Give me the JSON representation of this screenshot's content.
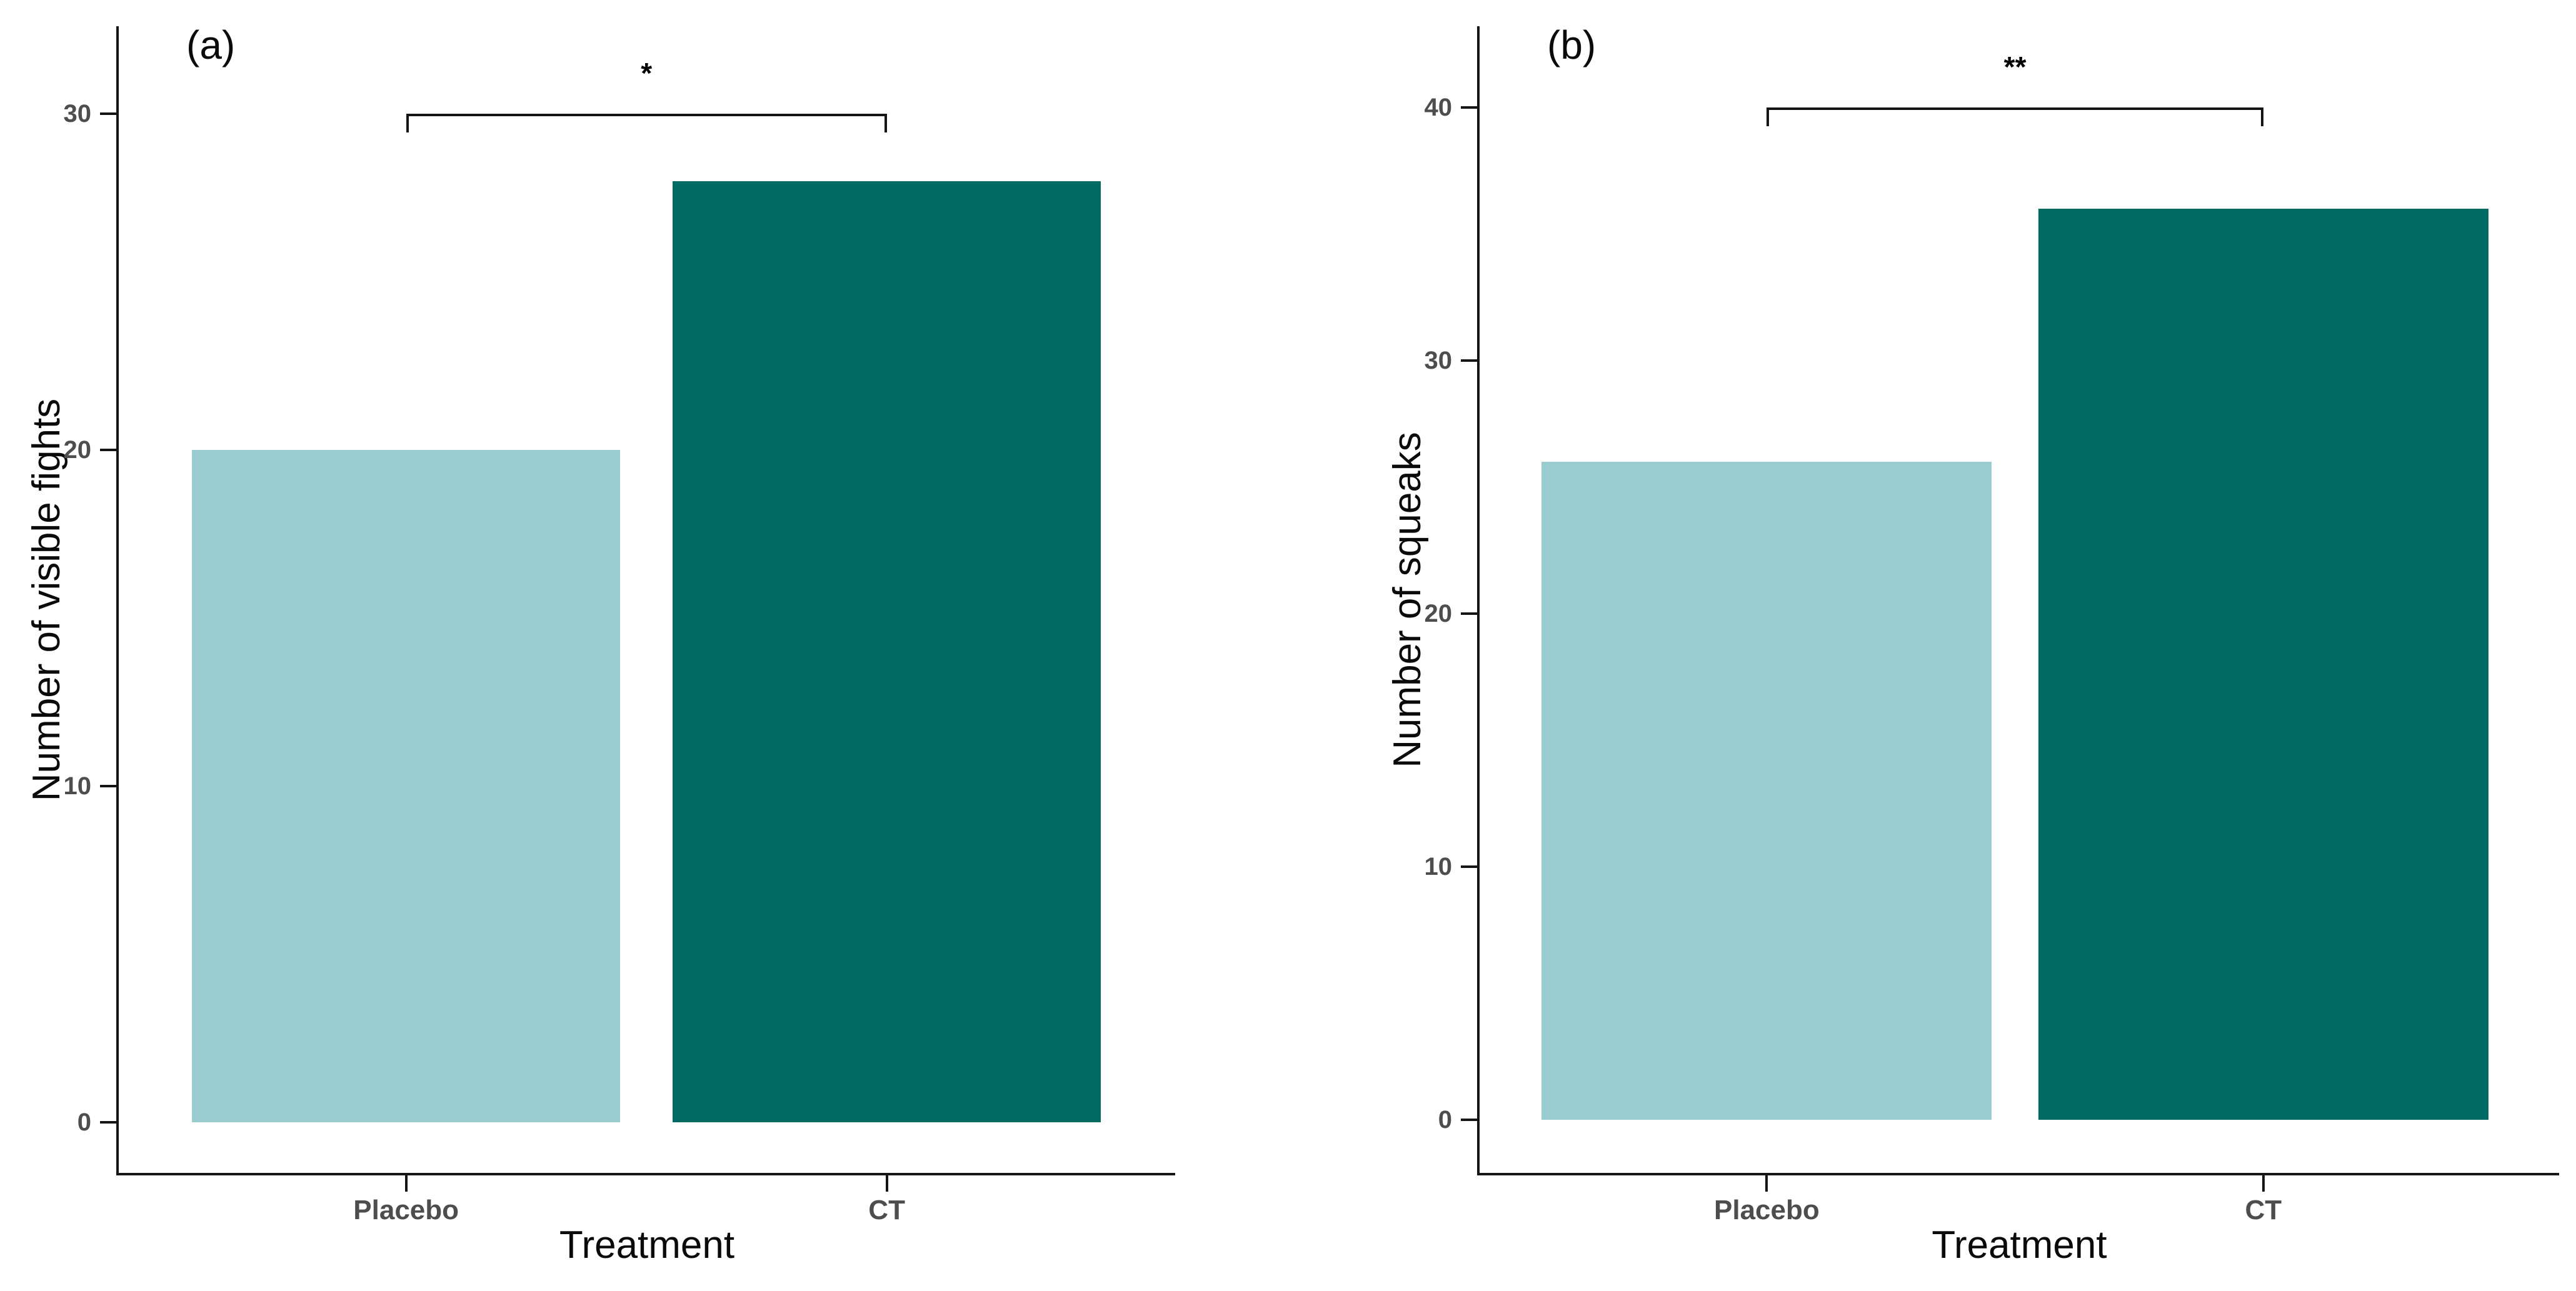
{
  "figure": {
    "background": "#ffffff",
    "colors": {
      "axis_line": "#151515",
      "tick_text": "#4d4d4d",
      "title_text": "#0a0a0a",
      "bar_light": "#98CCCE",
      "bar_dark": "#006A63"
    }
  },
  "chart_data": [
    {
      "type": "bar",
      "panel_tag": "(a)",
      "categories": [
        "Placebo",
        "CT"
      ],
      "values": [
        20,
        28
      ],
      "bar_colors": [
        "#98CCCE",
        "#006A63"
      ],
      "title": "",
      "xlabel": "Treatment",
      "ylabel": "Number of visible fights",
      "yticks": [
        0,
        10,
        20,
        30
      ],
      "ylim": [
        -1.5,
        32.6
      ],
      "grid": false,
      "legend_position": "none",
      "significance": {
        "label": "*",
        "y": 30,
        "from": "Placebo",
        "to": "CT"
      }
    },
    {
      "type": "bar",
      "panel_tag": "(b)",
      "categories": [
        "Placebo",
        "CT"
      ],
      "values": [
        26,
        36
      ],
      "bar_colors": [
        "#98CCCE",
        "#006A63"
      ],
      "title": "",
      "xlabel": "Treatment",
      "ylabel": "Number of squeaks",
      "yticks": [
        0,
        10,
        20,
        30,
        40
      ],
      "ylim": [
        -2.1,
        43.2
      ],
      "grid": false,
      "legend_position": "none",
      "significance": {
        "label": "**",
        "y": 40,
        "from": "Placebo",
        "to": "CT"
      }
    }
  ]
}
